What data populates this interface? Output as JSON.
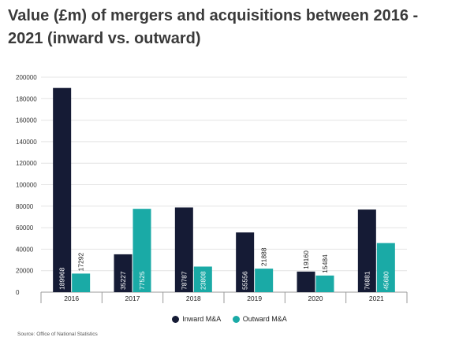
{
  "title": "Value (£m) of mergers and acquisitions between 2016 - 2021 (inward vs. outward)",
  "source": "Source: Office of National Statistics",
  "colors": {
    "inward": "#151b35",
    "outward": "#1aaaa6",
    "grid": "#e4e4e4",
    "axis": "#999999"
  },
  "chart_data": {
    "type": "bar",
    "title": "Value (£m) of mergers and acquisitions between 2016 - 2021 (inward vs. outward)",
    "xlabel": "",
    "ylabel": "",
    "categories": [
      "2016",
      "2017",
      "2018",
      "2019",
      "2020",
      "2021"
    ],
    "series": [
      {
        "name": "Inward M&A",
        "values": [
          189968,
          35227,
          78787,
          55556,
          19160,
          76881
        ],
        "labels": [
          "189968",
          "35227",
          "78787",
          "55556",
          "19160",
          "76881"
        ]
      },
      {
        "name": "Outward M&A",
        "values": [
          17292,
          77525,
          23808,
          21888,
          15484,
          45680
        ],
        "labels": [
          "17292",
          "77525",
          "23808",
          "21888",
          "15484",
          "45680"
        ]
      }
    ],
    "ylim": [
      0,
      200000
    ],
    "yticks": [
      "0",
      "20000",
      "40000",
      "60000",
      "80000",
      "100000",
      "120000",
      "140000",
      "160000",
      "180000",
      "200000"
    ],
    "grid": true,
    "legend": "bottom-center"
  }
}
